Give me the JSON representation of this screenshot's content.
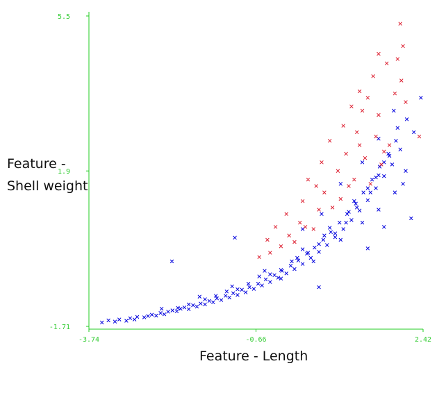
{
  "colors": {
    "axis": "#22cc22",
    "tick_text": "#33cc33",
    "class_a": "#0000dd",
    "class_b": "#dd2233"
  },
  "chart_data": {
    "type": "scatter",
    "title": "",
    "xlabel": "Feature - Length",
    "ylabel_lines": [
      "Feature -",
      "Shell weight"
    ],
    "xlim": [
      -3.74,
      2.42
    ],
    "ylim": [
      -1.71,
      5.5
    ],
    "x_ticks": [
      "-3.74",
      "-0.66",
      "2.42"
    ],
    "y_ticks": [
      "-1.71",
      "1.9",
      "5.5"
    ],
    "x_tick_values": [
      -3.74,
      -0.66,
      2.42
    ],
    "y_tick_values": [
      -1.71,
      1.9,
      5.5
    ],
    "grid": false,
    "marker": "x",
    "series": [
      {
        "color": "#0000dd",
        "points": [
          [
            -3.5,
            -1.62
          ],
          [
            -3.38,
            -1.57
          ],
          [
            -3.26,
            -1.6
          ],
          [
            -3.18,
            -1.55
          ],
          [
            -3.05,
            -1.58
          ],
          [
            -2.98,
            -1.52
          ],
          [
            -2.9,
            -1.55
          ],
          [
            -2.85,
            -1.49
          ],
          [
            -2.72,
            -1.5
          ],
          [
            -2.65,
            -1.47
          ],
          [
            -2.58,
            -1.44
          ],
          [
            -2.5,
            -1.46
          ],
          [
            -2.42,
            -1.4
          ],
          [
            -2.35,
            -1.43
          ],
          [
            -2.28,
            -1.37
          ],
          [
            -2.2,
            -1.34
          ],
          [
            -2.12,
            -1.36
          ],
          [
            -2.05,
            -1.3
          ],
          [
            -1.98,
            -1.27
          ],
          [
            -1.9,
            -1.31
          ],
          [
            -1.82,
            -1.22
          ],
          [
            -1.75,
            -1.25
          ],
          [
            -1.68,
            -1.18
          ],
          [
            -1.6,
            -1.2
          ],
          [
            -1.52,
            -1.12
          ],
          [
            -1.45,
            -1.15
          ],
          [
            -1.38,
            -1.06
          ],
          [
            -1.3,
            -1.1
          ],
          [
            -1.22,
            -1.0
          ],
          [
            -1.15,
            -1.04
          ],
          [
            -1.08,
            -0.94
          ],
          [
            -1.0,
            -0.98
          ],
          [
            -0.92,
            -0.86
          ],
          [
            -0.85,
            -0.92
          ],
          [
            -0.78,
            -0.8
          ],
          [
            -0.7,
            -0.84
          ],
          [
            -0.62,
            -0.72
          ],
          [
            -0.55,
            -0.76
          ],
          [
            -0.48,
            -0.62
          ],
          [
            -0.4,
            -0.68
          ],
          [
            -0.32,
            -0.52
          ],
          [
            -0.25,
            -0.58
          ],
          [
            -0.18,
            -0.42
          ],
          [
            -0.1,
            -0.48
          ],
          [
            -0.02,
            -0.3
          ],
          [
            0.05,
            -0.38
          ],
          [
            0.12,
            -0.18
          ],
          [
            0.2,
            -0.26
          ],
          [
            0.28,
            -0.02
          ],
          [
            0.35,
            -0.12
          ],
          [
            0.42,
            0.12
          ],
          [
            0.5,
            0.02
          ],
          [
            0.58,
            0.3
          ],
          [
            0.65,
            0.18
          ],
          [
            0.72,
            0.48
          ],
          [
            0.8,
            0.36
          ],
          [
            0.88,
            0.7
          ],
          [
            0.95,
            0.55
          ],
          [
            1.02,
            0.9
          ],
          [
            1.1,
            0.76
          ],
          [
            1.18,
            1.14
          ],
          [
            1.25,
            0.98
          ],
          [
            1.32,
            1.4
          ],
          [
            1.4,
            1.22
          ],
          [
            1.48,
            1.7
          ],
          [
            1.55,
            1.5
          ],
          [
            1.62,
            2.0
          ],
          [
            1.7,
            1.78
          ],
          [
            1.78,
            2.3
          ],
          [
            1.85,
            2.05
          ],
          [
            1.92,
            2.6
          ],
          [
            2.0,
            2.4
          ],
          [
            -1.9,
            -1.2
          ],
          [
            -1.2,
            -0.9
          ],
          [
            -0.6,
            -0.55
          ],
          [
            0.0,
            -0.2
          ],
          [
            0.5,
            0.2
          ],
          [
            1.0,
            0.7
          ],
          [
            1.4,
            1.5
          ],
          [
            1.7,
            2.1
          ],
          [
            -2.1,
            -1.28
          ],
          [
            -1.4,
            -1.0
          ],
          [
            -0.8,
            -0.72
          ],
          [
            -0.2,
            -0.4
          ],
          [
            0.3,
            0.0
          ],
          [
            0.8,
            0.45
          ],
          [
            1.2,
            1.05
          ],
          [
            1.6,
            1.8
          ],
          [
            -1.6,
            -1.08
          ],
          [
            -1.0,
            -0.85
          ],
          [
            -0.4,
            -0.5
          ],
          [
            0.1,
            -0.12
          ],
          [
            0.6,
            0.4
          ],
          [
            1.05,
            0.95
          ],
          [
            1.45,
            1.4
          ],
          [
            1.8,
            2.25
          ],
          [
            -2.4,
            -1.3
          ],
          [
            -1.7,
            -1.02
          ],
          [
            -1.1,
            -0.78
          ],
          [
            -0.5,
            -0.42
          ],
          [
            0.2,
            0.08
          ],
          [
            0.7,
            0.58
          ],
          [
            1.15,
            1.2
          ],
          [
            1.55,
            1.75
          ],
          [
            -0.2,
            -0.6
          ],
          [
            0.4,
            -0.2
          ],
          [
            0.9,
            0.3
          ],
          [
            1.3,
            0.7
          ],
          [
            1.6,
            1.0
          ],
          [
            1.9,
            1.4
          ],
          [
            2.1,
            1.9
          ],
          [
            2.25,
            2.8
          ],
          [
            -2.21,
            -0.2
          ],
          [
            -1.05,
            0.35
          ],
          [
            0.5,
            -0.8
          ],
          [
            1.4,
            0.1
          ],
          [
            1.7,
            0.6
          ],
          [
            2.2,
            0.8
          ],
          [
            2.05,
            1.6
          ],
          [
            1.95,
            2.9
          ],
          [
            1.88,
            3.3
          ],
          [
            2.12,
            3.1
          ],
          [
            2.38,
            3.6
          ],
          [
            1.6,
            2.65
          ],
          [
            1.3,
            2.1
          ],
          [
            0.9,
            1.6
          ],
          [
            0.55,
            0.9
          ],
          [
            0.2,
            0.55
          ]
        ]
      },
      {
        "color": "#dd2233",
        "points": [
          [
            2.0,
            5.32
          ],
          [
            2.05,
            4.8
          ],
          [
            1.6,
            4.62
          ],
          [
            1.95,
            4.5
          ],
          [
            1.75,
            4.4
          ],
          [
            1.5,
            4.1
          ],
          [
            2.02,
            4.0
          ],
          [
            1.25,
            3.75
          ],
          [
            1.4,
            3.6
          ],
          [
            1.9,
            3.7
          ],
          [
            2.1,
            3.5
          ],
          [
            1.1,
            3.4
          ],
          [
            1.3,
            3.3
          ],
          [
            1.6,
            3.2
          ],
          [
            2.35,
            2.7
          ],
          [
            0.95,
            2.95
          ],
          [
            1.2,
            2.8
          ],
          [
            1.55,
            2.7
          ],
          [
            1.8,
            2.5
          ],
          [
            0.7,
            2.6
          ],
          [
            1.0,
            2.3
          ],
          [
            1.35,
            2.2
          ],
          [
            1.65,
            2.05
          ],
          [
            0.55,
            2.1
          ],
          [
            0.85,
            1.9
          ],
          [
            1.15,
            1.7
          ],
          [
            1.45,
            1.6
          ],
          [
            0.3,
            1.7
          ],
          [
            0.6,
            1.4
          ],
          [
            0.9,
            1.25
          ],
          [
            0.2,
            1.2
          ],
          [
            0.5,
            1.0
          ],
          [
            -0.1,
            0.9
          ],
          [
            0.15,
            0.7
          ],
          [
            0.4,
            0.55
          ],
          [
            -0.3,
            0.6
          ],
          [
            -0.05,
            0.4
          ],
          [
            -0.45,
            0.3
          ],
          [
            -0.2,
            0.15
          ],
          [
            0.05,
            0.25
          ],
          [
            -0.6,
            -0.1
          ],
          [
            -0.4,
            0.0
          ],
          [
            0.25,
            0.6
          ],
          [
            0.75,
            1.05
          ],
          [
            1.05,
            1.55
          ],
          [
            1.7,
            2.35
          ],
          [
            1.25,
            2.5
          ],
          [
            0.45,
            1.55
          ]
        ]
      }
    ]
  }
}
